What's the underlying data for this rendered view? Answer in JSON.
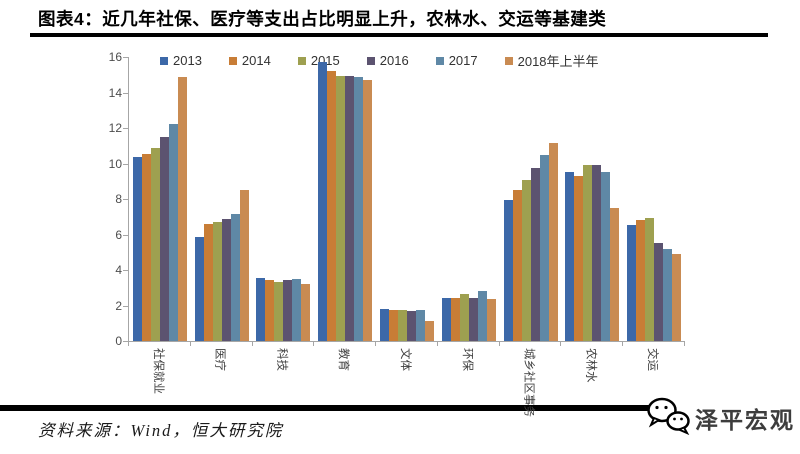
{
  "title": "图表4：近几年社保、医疗等支出占比明显上升，农林水、交运等基建类",
  "footer": {
    "source": "资料来源：Wind，恒大研究院",
    "logo_text": "泽平宏观",
    "logo_icon": "wechat-icon"
  },
  "chart_data": {
    "type": "bar",
    "title": "图表4：近几年社保、医疗等支出占比明显上升，农林水、交运等基建类",
    "categories": [
      "社保就业",
      "医疗",
      "科技",
      "教育",
      "文体",
      "环保",
      "城乡社区事务",
      "农林水",
      "交运"
    ],
    "series": [
      {
        "name": "2013",
        "color": "#3C68A8",
        "values": [
          10.35,
          5.85,
          3.55,
          15.7,
          1.8,
          2.4,
          7.95,
          9.5,
          6.55
        ]
      },
      {
        "name": "2014",
        "color": "#C87D36",
        "values": [
          10.55,
          6.6,
          3.45,
          15.2,
          1.75,
          2.4,
          8.5,
          9.3,
          6.8
        ]
      },
      {
        "name": "2015",
        "color": "#9EA050",
        "values": [
          10.85,
          6.7,
          3.3,
          14.95,
          1.75,
          2.65,
          9.05,
          9.9,
          6.95
        ]
      },
      {
        "name": "2016",
        "color": "#5C5370",
        "values": [
          11.5,
          6.9,
          3.45,
          14.95,
          1.7,
          2.45,
          9.75,
          9.9,
          5.5
        ]
      },
      {
        "name": "2017",
        "color": "#5F88A6",
        "values": [
          12.25,
          7.15,
          3.5,
          14.9,
          1.75,
          2.8,
          10.5,
          9.5,
          5.2
        ]
      },
      {
        "name": "2018年上半年",
        "color": "#C98B52",
        "values": [
          14.9,
          8.5,
          3.2,
          14.7,
          1.1,
          2.35,
          11.15,
          7.5,
          4.9
        ]
      }
    ],
    "xlabel": "",
    "ylabel": "",
    "ylim": [
      0,
      16
    ],
    "yticks": [
      0,
      2,
      4,
      6,
      8,
      10,
      12,
      14,
      16
    ],
    "grid": false,
    "legend_position": "top"
  }
}
